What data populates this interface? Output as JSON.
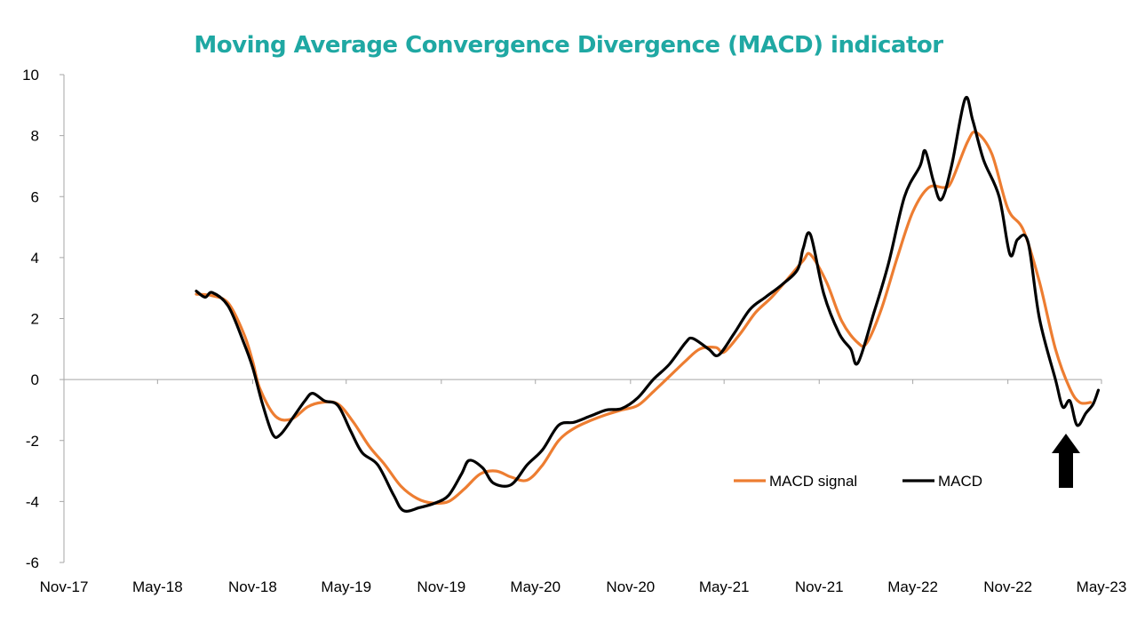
{
  "chart_data": {
    "type": "line",
    "title": "Moving Average Convergence Divergence (MACD) indicator",
    "xlabel": "",
    "ylabel": "",
    "x_ticks": [
      "Nov-17",
      "May-18",
      "Nov-18",
      "May-19",
      "Nov-19",
      "May-20",
      "Nov-20",
      "May-21",
      "Nov-21",
      "May-22",
      "Nov-22",
      "May-23"
    ],
    "xlim": [
      "2017-11",
      "2023-05"
    ],
    "ylim": [
      -6,
      10
    ],
    "y_ticks": [
      -6,
      -4,
      -2,
      0,
      2,
      4,
      6,
      8,
      10
    ],
    "grid": false,
    "legend": "bottom-right",
    "annotation": "up-arrow-icon",
    "series": [
      {
        "name": "MACD signal",
        "color": "#ed7d31",
        "points": [
          [
            "2018-07-15",
            2.8
          ],
          [
            "2018-08-15",
            2.75
          ],
          [
            "2018-09-15",
            2.5
          ],
          [
            "2018-10-15",
            1.5
          ],
          [
            "2018-11-01",
            0.6
          ],
          [
            "2018-11-15",
            -0.3
          ],
          [
            "2018-12-15",
            -1.2
          ],
          [
            "2019-01-15",
            -1.3
          ],
          [
            "2019-02-15",
            -0.9
          ],
          [
            "2019-03-15",
            -0.75
          ],
          [
            "2019-04-15",
            -0.8
          ],
          [
            "2019-05-15",
            -1.4
          ],
          [
            "2019-06-15",
            -2.2
          ],
          [
            "2019-07-15",
            -2.8
          ],
          [
            "2019-08-15",
            -3.5
          ],
          [
            "2019-09-15",
            -3.9
          ],
          [
            "2019-10-15",
            -4.05
          ],
          [
            "2019-11-15",
            -4.0
          ],
          [
            "2019-12-15",
            -3.6
          ],
          [
            "2020-01-15",
            -3.1
          ],
          [
            "2020-02-15",
            -3.0
          ],
          [
            "2020-03-15",
            -3.2
          ],
          [
            "2020-04-15",
            -3.3
          ],
          [
            "2020-05-15",
            -2.8
          ],
          [
            "2020-06-15",
            -2.0
          ],
          [
            "2020-07-15",
            -1.6
          ],
          [
            "2020-08-15",
            -1.35
          ],
          [
            "2020-09-15",
            -1.15
          ],
          [
            "2020-10-15",
            -1.0
          ],
          [
            "2020-11-15",
            -0.85
          ],
          [
            "2020-12-15",
            -0.4
          ],
          [
            "2021-01-15",
            0.1
          ],
          [
            "2021-02-15",
            0.6
          ],
          [
            "2021-03-15",
            1.0
          ],
          [
            "2021-04-15",
            1.05
          ],
          [
            "2021-05-01",
            0.9
          ],
          [
            "2021-06-01",
            1.5
          ],
          [
            "2021-07-01",
            2.2
          ],
          [
            "2021-08-01",
            2.7
          ],
          [
            "2021-09-01",
            3.3
          ],
          [
            "2021-10-01",
            3.9
          ],
          [
            "2021-10-15",
            4.1
          ],
          [
            "2021-11-15",
            3.2
          ],
          [
            "2021-12-15",
            1.9
          ],
          [
            "2022-01-15",
            1.2
          ],
          [
            "2022-02-01",
            1.2
          ],
          [
            "2022-03-01",
            2.3
          ],
          [
            "2022-04-01",
            4.0
          ],
          [
            "2022-05-01",
            5.5
          ],
          [
            "2022-06-01",
            6.3
          ],
          [
            "2022-07-01",
            6.3
          ],
          [
            "2022-07-15",
            6.5
          ],
          [
            "2022-08-15",
            7.8
          ],
          [
            "2022-09-01",
            8.1
          ],
          [
            "2022-10-01",
            7.4
          ],
          [
            "2022-11-01",
            5.6
          ],
          [
            "2022-12-01",
            4.9
          ],
          [
            "2023-01-01",
            3.2
          ],
          [
            "2023-02-01",
            1.0
          ],
          [
            "2023-03-01",
            -0.3
          ],
          [
            "2023-03-20",
            -0.75
          ],
          [
            "2023-04-10",
            -0.75
          ]
        ]
      },
      {
        "name": "MACD",
        "color": "#000000",
        "points": [
          [
            "2018-07-15",
            2.9
          ],
          [
            "2018-08-01",
            2.7
          ],
          [
            "2018-08-15",
            2.85
          ],
          [
            "2018-09-15",
            2.4
          ],
          [
            "2018-10-15",
            1.2
          ],
          [
            "2018-11-01",
            0.4
          ],
          [
            "2018-11-20",
            -0.8
          ],
          [
            "2018-12-10",
            -1.8
          ],
          [
            "2018-12-25",
            -1.8
          ],
          [
            "2019-01-20",
            -1.2
          ],
          [
            "2019-02-10",
            -0.7
          ],
          [
            "2019-02-25",
            -0.45
          ],
          [
            "2019-03-20",
            -0.7
          ],
          [
            "2019-04-15",
            -0.85
          ],
          [
            "2019-05-10",
            -1.7
          ],
          [
            "2019-06-01",
            -2.4
          ],
          [
            "2019-07-01",
            -2.8
          ],
          [
            "2019-08-01",
            -3.8
          ],
          [
            "2019-08-20",
            -4.3
          ],
          [
            "2019-09-20",
            -4.2
          ],
          [
            "2019-10-20",
            -4.05
          ],
          [
            "2019-11-15",
            -3.8
          ],
          [
            "2019-12-10",
            -3.1
          ],
          [
            "2019-12-25",
            -2.65
          ],
          [
            "2020-01-20",
            -2.9
          ],
          [
            "2020-02-10",
            -3.4
          ],
          [
            "2020-03-15",
            -3.45
          ],
          [
            "2020-04-15",
            -2.8
          ],
          [
            "2020-05-15",
            -2.3
          ],
          [
            "2020-06-15",
            -1.5
          ],
          [
            "2020-07-15",
            -1.4
          ],
          [
            "2020-08-15",
            -1.2
          ],
          [
            "2020-09-15",
            -1.0
          ],
          [
            "2020-10-15",
            -0.95
          ],
          [
            "2020-11-15",
            -0.6
          ],
          [
            "2020-12-15",
            0.0
          ],
          [
            "2021-01-15",
            0.5
          ],
          [
            "2021-02-15",
            1.2
          ],
          [
            "2021-03-01",
            1.35
          ],
          [
            "2021-04-01",
            1.0
          ],
          [
            "2021-04-20",
            0.8
          ],
          [
            "2021-05-20",
            1.5
          ],
          [
            "2021-06-20",
            2.3
          ],
          [
            "2021-07-20",
            2.7
          ],
          [
            "2021-08-20",
            3.1
          ],
          [
            "2021-09-20",
            3.6
          ],
          [
            "2021-10-01",
            4.3
          ],
          [
            "2021-10-15",
            4.75
          ],
          [
            "2021-11-10",
            2.8
          ],
          [
            "2021-12-10",
            1.5
          ],
          [
            "2022-01-01",
            1.0
          ],
          [
            "2022-01-15",
            0.55
          ],
          [
            "2022-02-15",
            2.2
          ],
          [
            "2022-03-15",
            3.8
          ],
          [
            "2022-04-15",
            6.0
          ],
          [
            "2022-05-15",
            7.0
          ],
          [
            "2022-05-25",
            7.5
          ],
          [
            "2022-06-10",
            6.5
          ],
          [
            "2022-06-25",
            5.9
          ],
          [
            "2022-07-15",
            7.0
          ],
          [
            "2022-08-10",
            9.2
          ],
          [
            "2022-08-25",
            8.5
          ],
          [
            "2022-09-15",
            7.2
          ],
          [
            "2022-10-15",
            6.0
          ],
          [
            "2022-11-05",
            4.1
          ],
          [
            "2022-11-20",
            4.6
          ],
          [
            "2022-12-10",
            4.5
          ],
          [
            "2023-01-01",
            2.0
          ],
          [
            "2023-02-01",
            0.0
          ],
          [
            "2023-02-15",
            -0.9
          ],
          [
            "2023-03-01",
            -0.7
          ],
          [
            "2023-03-15",
            -1.5
          ],
          [
            "2023-04-01",
            -1.1
          ],
          [
            "2023-04-15",
            -0.8
          ],
          [
            "2023-04-25",
            -0.35
          ]
        ]
      }
    ]
  }
}
